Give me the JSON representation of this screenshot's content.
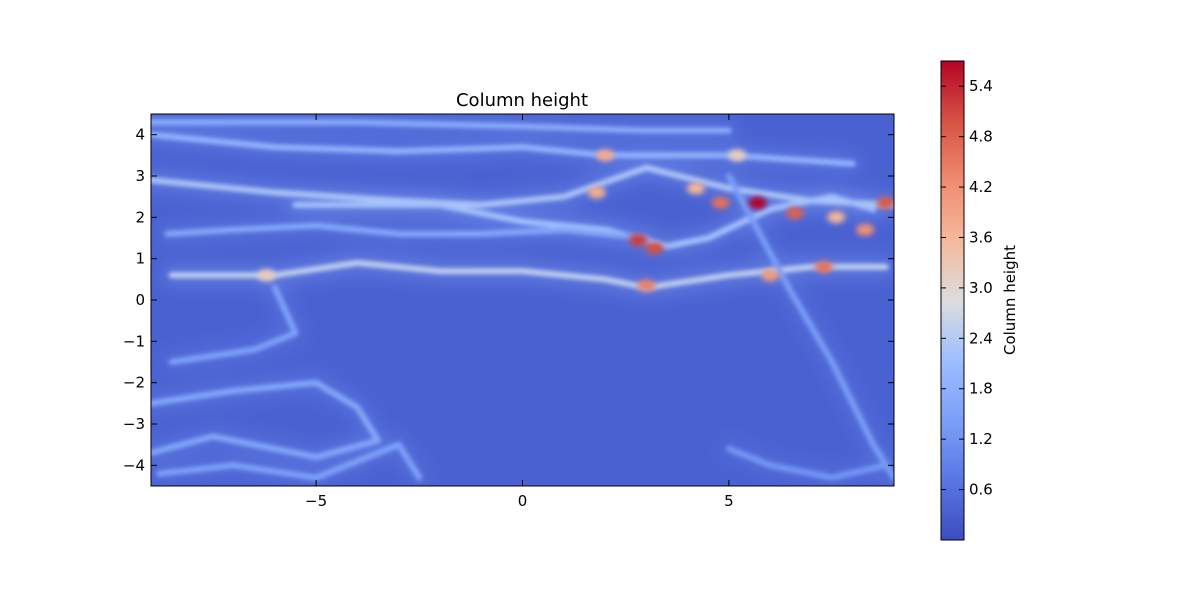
{
  "chart_data": {
    "type": "heatmap",
    "title": "Column height",
    "xlabel": "",
    "ylabel": "",
    "colorbar_label": "Column height",
    "colormap": "coolwarm",
    "xlim": [
      -9,
      9
    ],
    "ylim": [
      -4.5,
      4.5
    ],
    "color_range": [
      0.0,
      5.7
    ],
    "x_ticks": [
      -5,
      0,
      5
    ],
    "x_tick_labels": [
      "−5",
      "0",
      "5"
    ],
    "y_ticks": [
      4,
      3,
      2,
      1,
      0,
      -1,
      -2,
      -3,
      -4
    ],
    "y_tick_labels": [
      "4",
      "3",
      "2",
      "1",
      "0",
      "−1",
      "−2",
      "−3",
      "−4"
    ],
    "colorbar_ticks": [
      0.6,
      1.2,
      1.8,
      2.4,
      3.0,
      3.6,
      4.2,
      4.8,
      5.4
    ],
    "colorbar_tick_labels": [
      "0.6",
      "1.2",
      "1.8",
      "2.4",
      "3.0",
      "3.6",
      "4.2",
      "4.8",
      "5.4"
    ],
    "background_value": 0.35,
    "ridges": [
      {
        "value": 1.9,
        "points": [
          [
            -9,
            4.0
          ],
          [
            -6,
            3.7
          ],
          [
            -3,
            3.6
          ],
          [
            0,
            3.7
          ],
          [
            2,
            3.5
          ],
          [
            5,
            3.5
          ],
          [
            8,
            3.3
          ]
        ]
      },
      {
        "value": 1.7,
        "points": [
          [
            -9,
            4.3
          ],
          [
            -4,
            4.3
          ],
          [
            0,
            4.2
          ],
          [
            3,
            4.1
          ],
          [
            5,
            4.1
          ]
        ]
      },
      {
        "value": 2.3,
        "points": [
          [
            -9,
            2.9
          ],
          [
            -6,
            2.6
          ],
          [
            -3,
            2.4
          ],
          [
            -1,
            2.3
          ],
          [
            1,
            2.5
          ],
          [
            3,
            3.2
          ],
          [
            5,
            2.7
          ],
          [
            7,
            2.4
          ],
          [
            9,
            2.3
          ]
        ]
      },
      {
        "value": 2.2,
        "points": [
          [
            -5.5,
            2.3
          ],
          [
            -2,
            2.3
          ],
          [
            0,
            1.9
          ],
          [
            2,
            1.7
          ],
          [
            3.5,
            1.3
          ],
          [
            4.5,
            1.5
          ],
          [
            6,
            2.2
          ],
          [
            7.5,
            2.5
          ],
          [
            8.5,
            2.2
          ]
        ]
      },
      {
        "value": 2.5,
        "points": [
          [
            -8.5,
            0.6
          ],
          [
            -6,
            0.6
          ],
          [
            -4,
            0.9
          ],
          [
            -2,
            0.7
          ],
          [
            0,
            0.7
          ],
          [
            2,
            0.5
          ],
          [
            3,
            0.3
          ],
          [
            5,
            0.6
          ],
          [
            7,
            0.8
          ],
          [
            8.8,
            0.8
          ]
        ]
      },
      {
        "value": 1.6,
        "points": [
          [
            -8.6,
            1.6
          ],
          [
            -7,
            1.7
          ],
          [
            -5,
            1.8
          ],
          [
            -3,
            1.6
          ],
          [
            -1,
            1.6
          ],
          [
            1,
            1.7
          ],
          [
            3,
            1.5
          ]
        ]
      },
      {
        "value": 1.6,
        "points": [
          [
            -9,
            -2.5
          ],
          [
            -7,
            -2.2
          ],
          [
            -5,
            -2.0
          ],
          [
            -4,
            -2.6
          ],
          [
            -3.5,
            -3.4
          ],
          [
            -5,
            -3.8
          ],
          [
            -6,
            -3.6
          ],
          [
            -7.5,
            -3.3
          ],
          [
            -9,
            -3.7
          ]
        ]
      },
      {
        "value": 1.5,
        "points": [
          [
            -8.5,
            -1.5
          ],
          [
            -6.5,
            -1.2
          ],
          [
            -5.5,
            -0.8
          ],
          [
            -6,
            0.3
          ]
        ]
      },
      {
        "value": 1.5,
        "points": [
          [
            -8.8,
            -4.2
          ],
          [
            -7,
            -4.0
          ],
          [
            -5,
            -4.3
          ],
          [
            -3,
            -3.5
          ],
          [
            -2.5,
            -4.3
          ]
        ]
      },
      {
        "value": 1.4,
        "points": [
          [
            5,
            3.0
          ],
          [
            6.5,
            0.2
          ],
          [
            7.5,
            -1.5
          ],
          [
            8.5,
            -3.5
          ],
          [
            9,
            -4.3
          ]
        ]
      },
      {
        "value": 1.3,
        "points": [
          [
            5,
            -3.6
          ],
          [
            6,
            -4.0
          ],
          [
            7.5,
            -4.3
          ],
          [
            8.8,
            -4.0
          ]
        ]
      }
    ],
    "hotspots": [
      {
        "x": 5.7,
        "y": 2.35,
        "value": 5.7
      },
      {
        "x": 2.8,
        "y": 1.45,
        "value": 5.2
      },
      {
        "x": 3.2,
        "y": 1.25,
        "value": 5.0
      },
      {
        "x": 8.8,
        "y": 2.35,
        "value": 4.9
      },
      {
        "x": 6.6,
        "y": 2.1,
        "value": 4.8
      },
      {
        "x": 4.8,
        "y": 2.35,
        "value": 4.6
      },
      {
        "x": 7.3,
        "y": 0.8,
        "value": 4.6
      },
      {
        "x": 3.0,
        "y": 0.35,
        "value": 4.4
      },
      {
        "x": 8.3,
        "y": 1.7,
        "value": 4.2
      },
      {
        "x": 6.0,
        "y": 0.6,
        "value": 4.0
      },
      {
        "x": 2.0,
        "y": 3.5,
        "value": 3.8
      },
      {
        "x": 1.8,
        "y": 2.6,
        "value": 3.7
      },
      {
        "x": 4.2,
        "y": 2.7,
        "value": 3.6
      },
      {
        "x": 7.6,
        "y": 2.0,
        "value": 3.6
      },
      {
        "x": -6.2,
        "y": 0.6,
        "value": 3.2
      },
      {
        "x": 5.2,
        "y": 3.5,
        "value": 3.2
      }
    ],
    "grid": false
  }
}
